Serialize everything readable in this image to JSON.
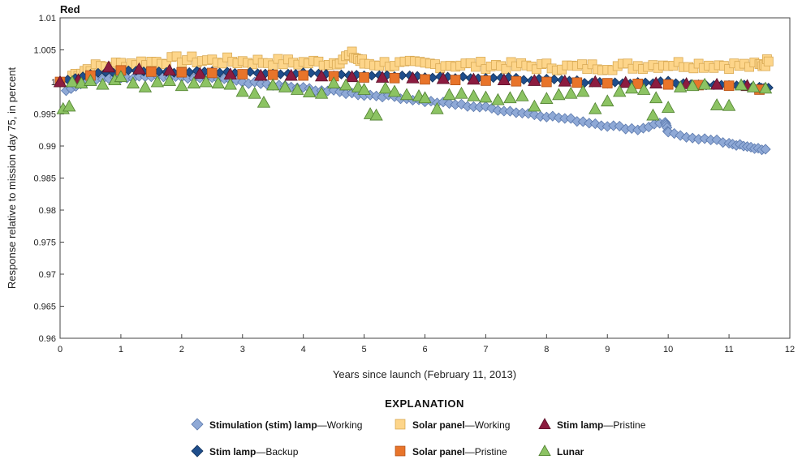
{
  "chart_data": {
    "type": "scatter",
    "title": "Red",
    "xlabel": "Years since launch (February 11, 2013)",
    "ylabel": "Response relative to mission day 75, in percent",
    "xlim": [
      0,
      12
    ],
    "ylim": [
      0.96,
      1.01
    ],
    "x_ticks": [
      0,
      1,
      2,
      3,
      4,
      5,
      6,
      7,
      8,
      9,
      10,
      11,
      12
    ],
    "y_ticks": [
      0.96,
      0.965,
      0.97,
      0.975,
      0.98,
      0.985,
      0.99,
      0.995,
      1,
      1.005,
      1.01
    ],
    "y_tick_labels": [
      "0.96",
      "0.965",
      "0.97",
      "0.975",
      "0.98",
      "0.985",
      "0.99",
      "0.995",
      "1",
      "1.005",
      "1.01"
    ],
    "grid": false,
    "legend": {
      "title": "EXPLANATION",
      "placement": "bottom"
    },
    "series": [
      {
        "key": "stim_working",
        "name_bold": "Stimulation (stim) lamp",
        "name_suffix": "—Working",
        "marker": "diamond",
        "color": "#8fa9d6",
        "stroke": "#5a78ac",
        "x": [
          0.1,
          0.5,
          1.0,
          1.5,
          2.0,
          2.5,
          3.0,
          3.5,
          4.0,
          4.5,
          5.0,
          5.5,
          6.0,
          6.5,
          7.0,
          7.5,
          8.0,
          8.5,
          9.0,
          9.5,
          9.95,
          10.0,
          10.5,
          11.0,
          11.3,
          11.6
        ],
        "y": [
          0.9988,
          1.0004,
          1.0006,
          1.0008,
          1.0006,
          1.0005,
          1.0,
          0.9995,
          0.999,
          0.9985,
          0.998,
          0.9977,
          0.997,
          0.9965,
          0.996,
          0.9953,
          0.9947,
          0.994,
          0.9932,
          0.9926,
          0.9938,
          0.992,
          0.9912,
          0.9905,
          0.9898,
          0.9895
        ]
      },
      {
        "key": "stim_backup",
        "name_bold": "Stim lamp",
        "name_suffix": "—Backup",
        "marker": "diamond",
        "color": "#1f4e8c",
        "stroke": "#12315a",
        "x": [
          0.0,
          0.5,
          1.0,
          1.5,
          2.0,
          2.5,
          3.0,
          3.5,
          4.0,
          4.5,
          5.0,
          5.5,
          6.0,
          6.5,
          7.0,
          7.5,
          8.0,
          8.5,
          9.0,
          9.5,
          10.0,
          10.5,
          11.0,
          11.5,
          11.65
        ],
        "y": [
          0.9998,
          1.0013,
          1.0017,
          1.0016,
          1.0016,
          1.0015,
          1.0014,
          1.0014,
          1.0013,
          1.0012,
          1.0011,
          1.001,
          1.0009,
          1.0008,
          1.0007,
          1.0005,
          1.0003,
          1.0001,
          0.9999,
          0.9998,
          1.0001,
          0.9997,
          0.9995,
          0.9993,
          0.9991
        ]
      },
      {
        "key": "solar_working",
        "name_bold": "Solar panel",
        "name_suffix": "—Working",
        "marker": "square",
        "color": "#fdd58a",
        "stroke": "#d9aa55",
        "x": [
          0.2,
          0.5,
          1.0,
          1.5,
          2.0,
          2.5,
          3.0,
          3.5,
          4.0,
          4.5,
          4.8,
          5.0,
          5.5,
          6.0,
          6.5,
          7.0,
          7.5,
          8.0,
          8.5,
          9.0,
          9.5,
          10.0,
          10.5,
          11.0,
          11.5,
          11.65
        ],
        "y": [
          1.001,
          1.0022,
          1.0028,
          1.0031,
          1.0035,
          1.0033,
          1.0032,
          1.0031,
          1.003,
          1.003,
          1.0042,
          1.0029,
          1.0028,
          1.0027,
          1.0027,
          1.0026,
          1.0025,
          1.0024,
          1.0023,
          1.0024,
          1.0025,
          1.0028,
          1.0027,
          1.0026,
          1.0025,
          1.0032
        ]
      },
      {
        "key": "solar_pristine",
        "name_bold": "Solar panel",
        "name_suffix": "—Pristine",
        "marker": "square",
        "color": "#e8742a",
        "stroke": "#b3531a",
        "x": [
          0.0,
          0.5,
          1.0,
          1.5,
          2.0,
          2.5,
          3.0,
          3.5,
          4.0,
          4.5,
          5.0,
          5.5,
          6.0,
          6.5,
          7.0,
          7.5,
          8.0,
          8.5,
          9.0,
          9.5,
          10.0,
          10.5,
          11.0,
          11.5
        ],
        "y": [
          1.0,
          1.001,
          1.0018,
          1.0016,
          1.0015,
          1.0014,
          1.0012,
          1.0011,
          1.001,
          1.0009,
          1.0007,
          1.0006,
          1.0004,
          1.0003,
          1.0002,
          1.0001,
          1.0,
          0.9999,
          0.9998,
          0.9997,
          0.9996,
          0.9995,
          0.9994,
          0.9988
        ]
      },
      {
        "key": "stim_pristine",
        "name_bold": "Stim lamp",
        "name_suffix": "—Pristine",
        "marker": "triangle",
        "color": "#8c1c40",
        "stroke": "#5a0f28",
        "x": [
          0.0,
          0.3,
          0.8,
          1.3,
          1.8,
          2.3,
          2.8,
          3.3,
          3.8,
          4.3,
          4.8,
          5.3,
          5.8,
          6.3,
          6.8,
          7.3,
          7.8,
          8.3,
          8.8,
          9.3,
          9.8,
          10.3,
          10.8,
          11.3
        ],
        "y": [
          1.0,
          1.0003,
          1.0023,
          1.002,
          1.0018,
          1.0013,
          1.0012,
          1.001,
          1.001,
          1.0009,
          1.0008,
          1.0007,
          1.0006,
          1.0005,
          1.0004,
          1.0003,
          1.0002,
          1.0001,
          1.0,
          0.9999,
          0.9998,
          0.9997,
          0.9996,
          0.9994
        ]
      },
      {
        "key": "lunar",
        "name_bold": "Lunar",
        "name_suffix": "",
        "marker": "triangle",
        "color": "#8cc363",
        "stroke": "#4f7f2f",
        "x": [
          0.05,
          0.15,
          0.2,
          0.35,
          0.5,
          0.7,
          0.9,
          1.0,
          1.2,
          1.4,
          1.6,
          1.8,
          2.0,
          2.2,
          2.4,
          2.6,
          2.8,
          3.0,
          3.2,
          3.35,
          3.5,
          3.7,
          3.9,
          4.1,
          4.3,
          4.5,
          4.7,
          4.9,
          5.0,
          5.1,
          5.2,
          5.35,
          5.5,
          5.7,
          5.9,
          6.0,
          6.2,
          6.4,
          6.6,
          6.8,
          7.0,
          7.2,
          7.4,
          7.6,
          7.8,
          8.0,
          8.2,
          8.4,
          8.6,
          8.8,
          9.0,
          9.2,
          9.4,
          9.6,
          9.75,
          9.8,
          10.0,
          10.2,
          10.4,
          10.6,
          10.8,
          11.0,
          11.2,
          11.4,
          11.6
        ],
        "y": [
          0.9958,
          0.9962,
          1.0,
          0.9998,
          1.0002,
          0.9996,
          1.0003,
          1.0008,
          0.9998,
          0.9992,
          1.0,
          1.0002,
          0.9994,
          0.9998,
          1.0,
          0.9998,
          0.9996,
          0.9985,
          0.9982,
          0.9968,
          0.9995,
          0.9992,
          0.9988,
          0.9984,
          0.9982,
          0.9998,
          0.9995,
          0.9992,
          0.9988,
          0.995,
          0.9948,
          0.999,
          0.9985,
          0.998,
          0.9978,
          0.9975,
          0.9958,
          0.998,
          0.9982,
          0.9978,
          0.9976,
          0.9972,
          0.9975,
          0.9978,
          0.9962,
          0.9974,
          0.998,
          0.9982,
          0.9985,
          0.9958,
          0.997,
          0.9985,
          0.999,
          0.9988,
          0.9948,
          0.9975,
          0.996,
          0.9992,
          0.9994,
          0.9996,
          0.9964,
          0.9963,
          0.9995,
          0.9992,
          0.999
        ]
      }
    ],
    "legend_order": [
      "stim_working",
      "solar_working",
      "stim_pristine",
      "stim_backup",
      "solar_pristine",
      "lunar"
    ]
  }
}
